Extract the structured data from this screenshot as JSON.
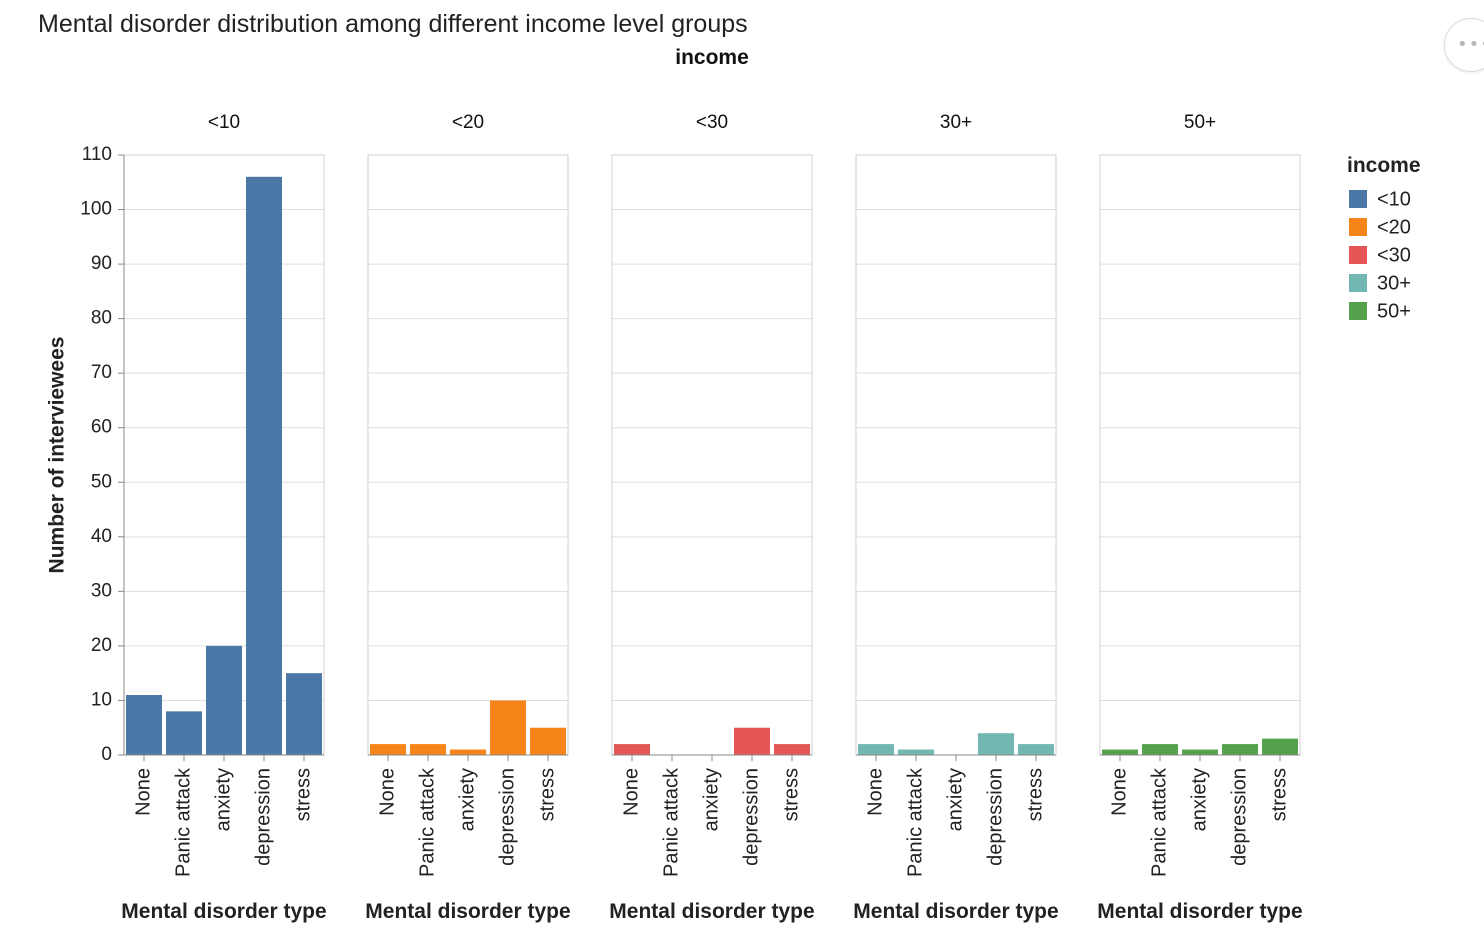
{
  "title": "Mental disorder distribution among different income level groups",
  "facet_header": "income",
  "actions_menu_icon": "ellipsis-icon",
  "chart_data": {
    "type": "bar",
    "title": "Mental disorder distribution among different income level groups",
    "facet_field": "income",
    "facets": [
      "<10",
      "<20",
      "<30",
      "30+",
      "50+"
    ],
    "categories": [
      "None",
      "Panic attack",
      "anxiety",
      "depression",
      "stress"
    ],
    "xlabel": "Mental disorder type",
    "ylabel": "Number of interviewees",
    "ylim": [
      0,
      110
    ],
    "yticks": [
      0,
      10,
      20,
      30,
      40,
      50,
      60,
      70,
      80,
      90,
      100,
      110
    ],
    "grid": true,
    "legend": {
      "title": "income",
      "position": "right",
      "entries": [
        "<10",
        "<20",
        "<30",
        "30+",
        "50+"
      ]
    },
    "colors": {
      "<10": "#4c78a8",
      "<20": "#f58518",
      "<30": "#e45756",
      "30+": "#72b7b2",
      "50+": "#54a24b"
    },
    "series": [
      {
        "name": "<10",
        "values": [
          11,
          8,
          20,
          106,
          15
        ]
      },
      {
        "name": "<20",
        "values": [
          2,
          2,
          1,
          10,
          5
        ]
      },
      {
        "name": "<30",
        "values": [
          2,
          0,
          0,
          5,
          2
        ]
      },
      {
        "name": "30+",
        "values": [
          2,
          1,
          0,
          4,
          2
        ]
      },
      {
        "name": "50+",
        "values": [
          1,
          2,
          1,
          2,
          3
        ]
      }
    ]
  }
}
